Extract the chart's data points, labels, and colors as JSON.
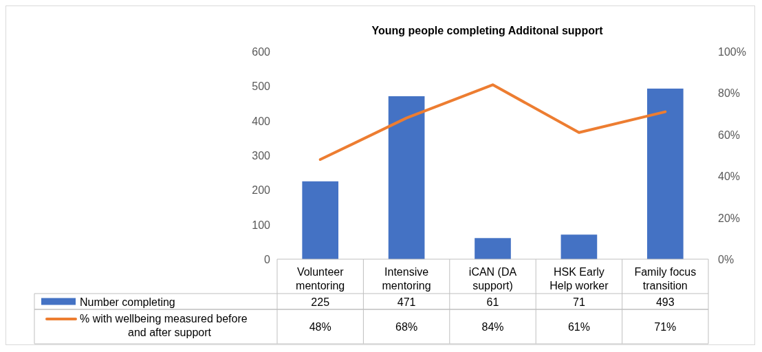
{
  "chart_data": {
    "type": "bar",
    "title": "Young people completing Additonal support",
    "categories": [
      "Volunteer mentoring",
      "Intensive mentoring",
      "iCAN (DA support)",
      "HSK Early Help worker",
      "Family focus transition"
    ],
    "series": [
      {
        "name": "Number completing",
        "color": "#4472c4",
        "values": [
          225,
          471,
          61,
          71,
          493
        ],
        "value_labels": [
          "225",
          "471",
          "61",
          "71",
          "493"
        ]
      },
      {
        "name": "% with wellbeing measured before and after support",
        "type": "line",
        "axis": "y2",
        "color": "#ed7d31",
        "values": [
          48,
          68,
          84,
          61,
          71
        ],
        "value_labels": [
          "48%",
          "68%",
          "84%",
          "61%",
          "71%"
        ]
      }
    ],
    "ylim": [
      0,
      600
    ],
    "yticks": [
      0,
      100,
      200,
      300,
      400,
      500,
      600
    ],
    "y2lim": [
      0,
      100
    ],
    "y2ticks": [
      {
        "value": 0,
        "label": "0%"
      },
      {
        "value": 20,
        "label": "20%"
      },
      {
        "value": 40,
        "label": "40%"
      },
      {
        "value": 60,
        "label": "60%"
      },
      {
        "value": 80,
        "label": "80%"
      },
      {
        "value": 100,
        "label": "100%"
      }
    ],
    "legend": "bottom",
    "grid": false
  }
}
